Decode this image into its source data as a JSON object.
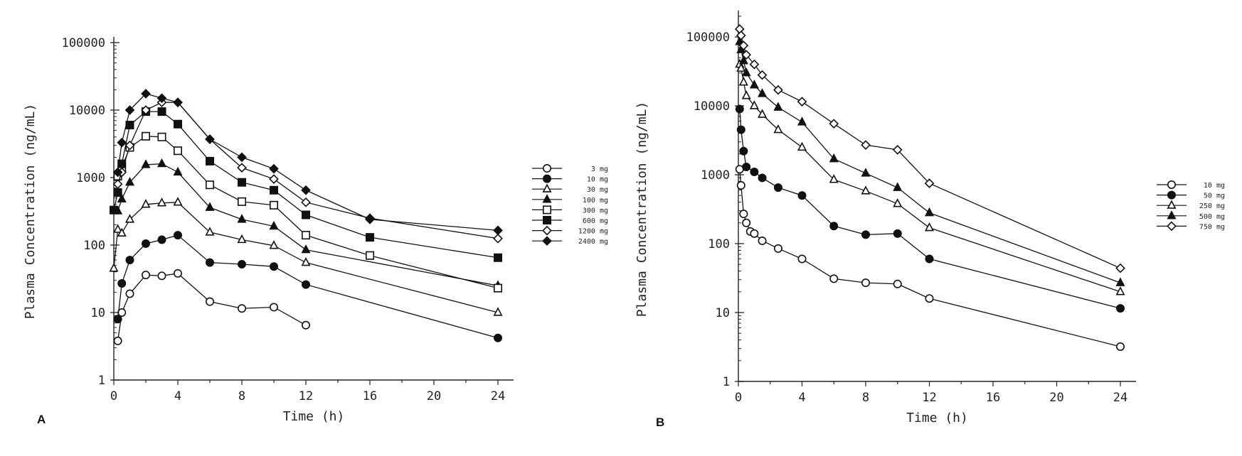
{
  "chart_data": [
    {
      "type": "line",
      "panel_label": "A",
      "xlabel": "Time (h)",
      "ylabel": "Plasma Concentration (ng/mL)",
      "xlim": [
        0,
        25
      ],
      "ylim": [
        1,
        100000
      ],
      "y_scale": "log",
      "x_ticks": [
        0,
        4,
        8,
        12,
        16,
        20,
        24
      ],
      "x_tick_labels": [
        "0",
        "4",
        "8",
        "12",
        "16",
        "20",
        "24"
      ],
      "y_ticks": [
        1,
        10,
        100,
        1000,
        10000,
        100000
      ],
      "y_tick_labels": [
        "1",
        "10",
        "100",
        "1000",
        "10000",
        "100000"
      ],
      "grid": false,
      "legend_position": "right",
      "series": [
        {
          "name": "3 mg",
          "marker": "circle-open",
          "x": [
            0.25,
            0.5,
            1,
            2,
            3,
            4,
            6,
            8,
            10,
            12
          ],
          "y": [
            3.8,
            10,
            19,
            36,
            35,
            38,
            14.5,
            11.5,
            12,
            6.5
          ]
        },
        {
          "name": "10 mg",
          "marker": "circle-filled",
          "x": [
            0.25,
            0.5,
            1,
            2,
            3,
            4,
            6,
            8,
            10,
            12,
            24
          ],
          "y": [
            8,
            27,
            60,
            105,
            120,
            140,
            55,
            52,
            48,
            26,
            4.2
          ]
        },
        {
          "name": "30 mg",
          "marker": "triangle-open",
          "x": [
            0,
            0.25,
            0.5,
            1,
            2,
            3,
            4,
            6,
            8,
            10,
            12,
            24
          ],
          "y": [
            45,
            170,
            150,
            240,
            400,
            420,
            430,
            155,
            120,
            98,
            55,
            10
          ]
        },
        {
          "name": "100 mg",
          "marker": "triangle-filled",
          "x": [
            0.25,
            0.5,
            1,
            2,
            3,
            4,
            6,
            8,
            10,
            12,
            24
          ],
          "y": [
            320,
            480,
            850,
            1550,
            1600,
            1200,
            360,
            240,
            190,
            85,
            25
          ]
        },
        {
          "name": "300 mg",
          "marker": "square-open",
          "x": [
            0.25,
            0.5,
            1,
            2,
            3,
            4,
            6,
            8,
            10,
            12,
            16,
            24
          ],
          "y": [
            1050,
            1400,
            2800,
            4100,
            4000,
            2500,
            780,
            440,
            390,
            140,
            70,
            23
          ]
        },
        {
          "name": "600 mg",
          "marker": "square-filled",
          "x": [
            0,
            0.25,
            0.5,
            1,
            2,
            3,
            4,
            6,
            8,
            10,
            12,
            16,
            24
          ],
          "y": [
            330,
            600,
            1600,
            6000,
            9500,
            9500,
            6200,
            1750,
            850,
            650,
            280,
            130,
            65
          ]
        },
        {
          "name": "1200 mg",
          "marker": "diamond-open",
          "x": [
            0.25,
            0.5,
            1,
            2,
            3,
            4,
            6,
            8,
            10,
            12,
            16,
            24
          ],
          "y": [
            800,
            1200,
            3000,
            10000,
            13000,
            13000,
            3700,
            1400,
            950,
            430,
            250,
            125
          ]
        },
        {
          "name": "2400 mg",
          "marker": "diamond-filled",
          "x": [
            0.25,
            0.5,
            1,
            2,
            3,
            4,
            6,
            8,
            10,
            12,
            16,
            24
          ],
          "y": [
            1200,
            3300,
            10000,
            17500,
            15000,
            13000,
            3700,
            2000,
            1350,
            650,
            240,
            165
          ]
        }
      ]
    },
    {
      "type": "line",
      "panel_label": "B",
      "xlabel": "Time (h)",
      "ylabel": "Plasma Concentration (ng/mL)",
      "xlim": [
        0,
        25
      ],
      "ylim": [
        1,
        200000
      ],
      "y_scale": "log",
      "x_ticks": [
        0,
        4,
        8,
        12,
        16,
        20,
        24
      ],
      "x_tick_labels": [
        "0",
        "4",
        "8",
        "12",
        "16",
        "20",
        "24"
      ],
      "y_ticks": [
        1,
        10,
        100,
        1000,
        10000,
        100000
      ],
      "y_tick_labels": [
        "1",
        "10",
        "100",
        "1000",
        "10000",
        "100000"
      ],
      "grid": false,
      "legend_position": "right",
      "series": [
        {
          "name": "10 mg",
          "marker": "circle-open",
          "x": [
            0.08,
            0.17,
            0.33,
            0.5,
            0.75,
            1,
            1.5,
            2.5,
            4,
            6,
            8,
            10,
            12,
            24
          ],
          "y": [
            1200,
            700,
            270,
            200,
            150,
            140,
            110,
            85,
            60,
            31,
            27,
            26,
            16,
            3.2
          ]
        },
        {
          "name": "50 mg",
          "marker": "circle-filled",
          "x": [
            0.08,
            0.17,
            0.33,
            0.5,
            1,
            1.5,
            2.5,
            4,
            6,
            8,
            10,
            12,
            24
          ],
          "y": [
            9000,
            4500,
            2200,
            1300,
            1100,
            900,
            650,
            500,
            180,
            135,
            140,
            60,
            11.5
          ]
        },
        {
          "name": "250 mg",
          "marker": "triangle-open",
          "x": [
            0.08,
            0.17,
            0.33,
            0.5,
            1,
            1.5,
            2.5,
            4,
            6,
            8,
            10,
            12,
            24
          ],
          "y": [
            40000,
            35000,
            22000,
            14000,
            10000,
            7500,
            4500,
            2500,
            850,
            580,
            380,
            170,
            20
          ]
        },
        {
          "name": "500 mg",
          "marker": "triangle-filled",
          "x": [
            0.08,
            0.17,
            0.33,
            0.5,
            1,
            1.5,
            2.5,
            4,
            6,
            8,
            10,
            12,
            24
          ],
          "y": [
            85000,
            65000,
            45000,
            30000,
            20000,
            15000,
            9500,
            5800,
            1700,
            1050,
            650,
            280,
            27
          ]
        },
        {
          "name": "750 mg",
          "marker": "diamond-open",
          "x": [
            0.08,
            0.17,
            0.33,
            0.5,
            1,
            1.5,
            2.5,
            4,
            6,
            8,
            10,
            12,
            24
          ],
          "y": [
            130000,
            105000,
            75000,
            55000,
            40000,
            28000,
            17000,
            11500,
            5500,
            2700,
            2300,
            750,
            44
          ]
        }
      ]
    }
  ]
}
